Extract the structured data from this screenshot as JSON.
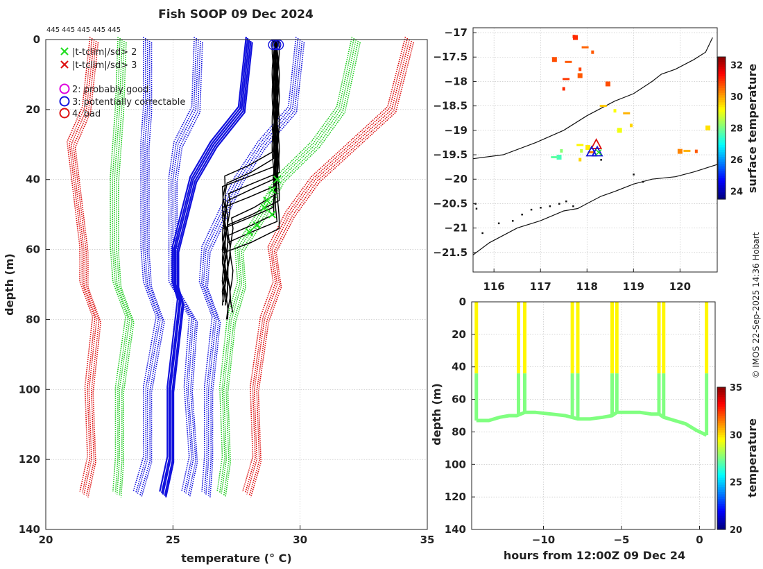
{
  "figure": {
    "title": "Fish SOOP 09 Dec 2024",
    "credit": "© IMOS 22-Sep-2025 14:36 Hobart",
    "id_labels": [
      "445",
      "445",
      "445",
      "445",
      "445"
    ]
  },
  "chart_data": [
    {
      "id": "profiles",
      "type": "line",
      "title": "Fish SOOP 09 Dec 2024",
      "xlabel": "temperature (° C)",
      "ylabel": "depth (m)",
      "xlim": [
        20,
        35
      ],
      "ylim": [
        140,
        0
      ],
      "xticks": [
        20,
        25,
        30,
        35
      ],
      "yticks": [
        0,
        20,
        40,
        60,
        80,
        100,
        120,
        140
      ],
      "grid": true,
      "legend": {
        "position": "top-left",
        "entries": [
          {
            "symbol": "x",
            "color": "#22dd22",
            "label": "|t-tclim|/sd> 2"
          },
          {
            "symbol": "x",
            "color": "#dd1111",
            "label": "|t-tclim|/sd> 3"
          },
          {
            "symbol": "o",
            "color": "#dd00dd",
            "label": "2: probably good"
          },
          {
            "symbol": "o",
            "color": "#1111dd",
            "label": "3: potentially correctable"
          },
          {
            "symbol": "o",
            "color": "#dd1111",
            "label": "4: bad"
          }
        ]
      },
      "envelopes": [
        {
          "name": "clim_minus_3sd",
          "color": "#dd1111",
          "depth": [
            0,
            20,
            30,
            60,
            70,
            80,
            100,
            120,
            130
          ],
          "temp": [
            21.9,
            21.6,
            21.0,
            21.5,
            21.5,
            22.0,
            21.7,
            21.8,
            21.5
          ]
        },
        {
          "name": "clim_minus_2sd",
          "color": "#22cc22",
          "depth": [
            0,
            20,
            40,
            60,
            70,
            80,
            100,
            120,
            130
          ],
          "temp": [
            23.0,
            22.9,
            22.7,
            22.7,
            22.8,
            23.3,
            22.9,
            22.9,
            22.8
          ]
        },
        {
          "name": "clim_minus_1sd",
          "color": "#1111dd",
          "depth": [
            0,
            20,
            30,
            60,
            70,
            80,
            100,
            120,
            130
          ],
          "temp": [
            24.0,
            24.0,
            23.9,
            23.9,
            24.0,
            24.5,
            24.0,
            24.0,
            23.6
          ]
        },
        {
          "name": "climatology_mean",
          "color": "#1111dd",
          "thick": true,
          "depth": [
            0,
            20,
            30,
            40,
            60,
            70,
            75,
            100,
            120,
            130
          ],
          "temp": [
            28.0,
            27.7,
            26.6,
            25.8,
            25.1,
            25.1,
            25.3,
            24.9,
            24.9,
            24.6
          ]
        },
        {
          "name": "clim_plus_1sd",
          "color": "#1111dd",
          "depth": [
            0,
            20,
            30,
            40,
            60,
            70,
            80,
            100,
            120,
            130
          ],
          "temp": [
            26.0,
            25.9,
            25.2,
            25.0,
            25.0,
            25.0,
            25.8,
            25.6,
            25.8,
            25.5
          ]
        },
        {
          "name": "clim_plus_1sd_b",
          "color": "#1111dd",
          "depth": [
            0,
            20,
            30,
            40,
            60,
            70,
            80,
            100,
            120,
            130
          ],
          "temp": [
            30.0,
            29.7,
            28.5,
            27.6,
            26.3,
            26.2,
            26.7,
            26.4,
            26.4,
            26.3
          ]
        },
        {
          "name": "clim_plus_2sd",
          "color": "#22cc22",
          "depth": [
            0,
            20,
            30,
            40,
            50,
            60,
            70,
            80,
            100,
            120,
            130
          ],
          "temp": [
            32.2,
            31.6,
            30.6,
            29.2,
            28.5,
            27.6,
            27.7,
            27.3,
            27.0,
            27.1,
            26.9
          ]
        },
        {
          "name": "clim_plus_3sd",
          "color": "#dd1111",
          "depth": [
            0,
            20,
            30,
            40,
            50,
            60,
            70,
            80,
            100,
            120,
            130
          ],
          "temp": [
            34.3,
            33.6,
            32.1,
            30.6,
            29.6,
            28.9,
            29.1,
            28.6,
            28.2,
            28.3,
            27.9
          ]
        }
      ],
      "profiles": {
        "color": "#000000",
        "surface_temp": 29.0,
        "mixed_layer_bottom": [
          33,
          35,
          36,
          38,
          40,
          42,
          45,
          47,
          48,
          50,
          52,
          55
        ],
        "deep_temp": [
          27.0,
          27.1,
          27.0,
          27.2,
          27.1,
          27.0,
          27.3,
          27.1,
          27.0,
          27.2,
          27.1,
          27.0
        ],
        "max_depth": [
          75,
          74,
          76,
          80,
          75,
          74,
          78,
          82,
          73,
          75,
          76,
          77
        ]
      },
      "flags": {
        "qc3_circles_at_surface": [
          28.95,
          29.05,
          29.15
        ],
        "gt2sd_crosses": [
          {
            "temp": 29.1,
            "depth": 40
          },
          {
            "temp": 28.9,
            "depth": 43
          },
          {
            "temp": 28.7,
            "depth": 46
          },
          {
            "temp": 28.6,
            "depth": 48
          },
          {
            "temp": 28.9,
            "depth": 50
          },
          {
            "temp": 28.3,
            "depth": 53
          },
          {
            "temp": 28.0,
            "depth": 55
          }
        ]
      }
    },
    {
      "id": "map",
      "type": "heatmap",
      "xlim": [
        115.55,
        120.8
      ],
      "ylim": [
        -21.9,
        -16.9
      ],
      "xticks": [
        116,
        117,
        118,
        119,
        120
      ],
      "yticks": [
        -17,
        -17.5,
        -18,
        -18.5,
        -19,
        -19.5,
        -20,
        -20.5,
        -21,
        -21.5
      ],
      "grid": true,
      "colorbar": {
        "label": "surface temperature",
        "range": [
          23.5,
          32.5
        ],
        "ticks": [
          24,
          26,
          28,
          30,
          32
        ]
      },
      "patches": [
        {
          "lon": 117.72,
          "lat": -17.08,
          "sst": 30.8
        },
        {
          "lon": 117.75,
          "lat": -17.1,
          "sst": 31.0
        },
        {
          "lon": 117.96,
          "lat": -17.3,
          "sst": 30.5
        },
        {
          "lon": 118.12,
          "lat": -17.4,
          "sst": 30.6
        },
        {
          "lon": 117.3,
          "lat": -17.55,
          "sst": 30.7
        },
        {
          "lon": 117.6,
          "lat": -17.6,
          "sst": 30.6
        },
        {
          "lon": 117.85,
          "lat": -17.75,
          "sst": 30.8
        },
        {
          "lon": 117.85,
          "lat": -17.88,
          "sst": 30.6
        },
        {
          "lon": 117.55,
          "lat": -17.95,
          "sst": 30.9
        },
        {
          "lon": 117.5,
          "lat": -18.15,
          "sst": 31.0
        },
        {
          "lon": 118.45,
          "lat": -18.05,
          "sst": 30.7
        },
        {
          "lon": 118.85,
          "lat": -18.65,
          "sst": 29.8
        },
        {
          "lon": 118.95,
          "lat": -18.9,
          "sst": 29.5
        },
        {
          "lon": 118.7,
          "lat": -19.0,
          "sst": 29.0
        },
        {
          "lon": 117.85,
          "lat": -19.3,
          "sst": 29.2
        },
        {
          "lon": 117.88,
          "lat": -19.42,
          "sst": 28.6
        },
        {
          "lon": 118.02,
          "lat": -19.35,
          "sst": 29.3
        },
        {
          "lon": 118.1,
          "lat": -19.45,
          "sst": 30.3
        },
        {
          "lon": 117.45,
          "lat": -19.42,
          "sst": 28.1
        },
        {
          "lon": 117.4,
          "lat": -19.55,
          "sst": 27.5
        },
        {
          "lon": 117.3,
          "lat": -19.55,
          "sst": 27.7
        },
        {
          "lon": 117.85,
          "lat": -19.6,
          "sst": 29.5
        },
        {
          "lon": 120.0,
          "lat": -19.43,
          "sst": 30.2
        },
        {
          "lon": 120.15,
          "lat": -19.42,
          "sst": 29.8
        },
        {
          "lon": 120.35,
          "lat": -19.43,
          "sst": 30.6
        },
        {
          "lon": 120.6,
          "lat": -18.95,
          "sst": 29.4
        },
        {
          "lon": 118.35,
          "lat": -18.5,
          "sst": 29.6
        },
        {
          "lon": 118.6,
          "lat": -18.6,
          "sst": 29.1
        }
      ],
      "track_markers": [
        {
          "lon": 118.2,
          "lat": -19.3,
          "color": "#dd1111"
        },
        {
          "lon": 118.22,
          "lat": -19.45,
          "color": "#1111dd"
        },
        {
          "lon": 118.1,
          "lat": -19.45,
          "color": "#1111dd"
        }
      ]
    },
    {
      "id": "timeseries",
      "type": "scatter",
      "xlabel": "hours from 12:00Z 09 Dec 24",
      "ylabel": "depth (m)",
      "xlim": [
        -14.6,
        1.0
      ],
      "ylim": [
        140,
        0
      ],
      "xticks": [
        -10,
        -5,
        0
      ],
      "yticks": [
        0,
        20,
        40,
        60,
        80,
        100,
        120,
        140
      ],
      "colorbar": {
        "label": "temperature",
        "range": [
          20,
          35
        ],
        "ticks": [
          20,
          25,
          30,
          35
        ]
      },
      "casts": [
        {
          "t": -14.3,
          "bottom": 73
        },
        {
          "t": -11.6,
          "bottom": 70
        },
        {
          "t": -11.2,
          "bottom": 68
        },
        {
          "t": -8.15,
          "bottom": 71
        },
        {
          "t": -7.8,
          "bottom": 72
        },
        {
          "t": -5.6,
          "bottom": 70
        },
        {
          "t": -5.3,
          "bottom": 68
        },
        {
          "t": -2.6,
          "bottom": 69
        },
        {
          "t": -2.3,
          "bottom": 71
        },
        {
          "t": 0.45,
          "bottom": 82
        }
      ],
      "bottom_trace": [
        [
          -14.3,
          73
        ],
        [
          -13.5,
          73
        ],
        [
          -12.8,
          71
        ],
        [
          -12.2,
          70
        ],
        [
          -11.7,
          70
        ],
        [
          -11.2,
          68
        ],
        [
          -10.5,
          68
        ],
        [
          -9.5,
          69
        ],
        [
          -8.6,
          70
        ],
        [
          -8.2,
          71
        ],
        [
          -7.8,
          72
        ],
        [
          -7.0,
          72
        ],
        [
          -6.2,
          71
        ],
        [
          -5.6,
          70
        ],
        [
          -5.3,
          68
        ],
        [
          -4.5,
          68
        ],
        [
          -3.8,
          68
        ],
        [
          -3.1,
          69
        ],
        [
          -2.6,
          69
        ],
        [
          -2.3,
          71
        ],
        [
          -1.6,
          73
        ],
        [
          -0.9,
          75
        ],
        [
          -0.2,
          79
        ],
        [
          0.45,
          82
        ]
      ],
      "surface_temp": 29.5,
      "deep_temp": 27.5
    }
  ]
}
